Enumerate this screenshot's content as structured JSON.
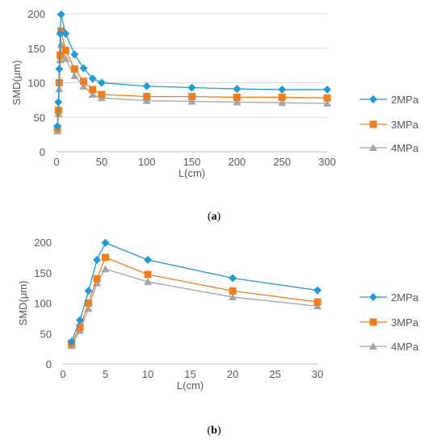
{
  "chart_data": [
    {
      "type": "line",
      "caption": "(a)",
      "caption_letter": "a",
      "xlabel": "L(cm)",
      "ylabel": "SMD(μm)",
      "xlim": [
        0,
        300
      ],
      "ylim": [
        0,
        200
      ],
      "x_ticks": [
        "0",
        "50",
        "100",
        "150",
        "200",
        "250",
        "300"
      ],
      "y_ticks": [
        "0",
        "50",
        "100",
        "150",
        "200"
      ],
      "x_tick_values": [
        0,
        50,
        100,
        150,
        200,
        250,
        300
      ],
      "y_tick_values": [
        0,
        50,
        100,
        150,
        200
      ],
      "grid": "horizontal",
      "legend": "right",
      "series": [
        {
          "name": "2MPa",
          "color": "#1f9bd7",
          "marker": "diamond",
          "x": [
            1,
            2,
            3,
            4,
            5,
            10,
            20,
            30,
            40,
            50,
            100,
            150,
            200,
            250,
            300
          ],
          "y": [
            37,
            72,
            120,
            171,
            199,
            171,
            141,
            121,
            106,
            100,
            95,
            93,
            91,
            90,
            90
          ]
        },
        {
          "name": "3MPa",
          "color": "#f07d1e",
          "marker": "square",
          "x": [
            1,
            2,
            3,
            4,
            5,
            10,
            20,
            30,
            40,
            50,
            100,
            150,
            200,
            250,
            300
          ],
          "y": [
            34,
            60,
            100,
            140,
            175,
            147,
            120,
            102,
            90,
            83,
            80,
            80,
            79,
            79,
            78
          ]
        },
        {
          "name": "4MPa",
          "color": "#a5a5a5",
          "marker": "triangle",
          "x": [
            1,
            2,
            3,
            4,
            5,
            10,
            20,
            30,
            40,
            50,
            100,
            150,
            200,
            250,
            300
          ],
          "y": [
            30,
            55,
            91,
            133,
            156,
            135,
            110,
            95,
            83,
            78,
            74,
            73,
            72,
            71,
            70
          ]
        }
      ]
    },
    {
      "type": "line",
      "caption": "(b)",
      "caption_letter": "b",
      "xlabel": "L(cm)",
      "ylabel": "SMD(μm)",
      "xlim": [
        0,
        30
      ],
      "ylim": [
        0,
        200
      ],
      "x_ticks": [
        "0",
        "5",
        "10",
        "15",
        "20",
        "25",
        "30"
      ],
      "y_ticks": [
        "0",
        "50",
        "100",
        "150",
        "200"
      ],
      "x_tick_values": [
        0,
        5,
        10,
        15,
        20,
        25,
        30
      ],
      "y_tick_values": [
        0,
        50,
        100,
        150,
        200
      ],
      "grid": "none",
      "legend": "right",
      "series": [
        {
          "name": "2MPa",
          "color": "#1f9bd7",
          "marker": "diamond",
          "x": [
            1,
            2,
            3,
            4,
            5,
            10,
            20,
            30
          ],
          "y": [
            37,
            72,
            120,
            171,
            199,
            171,
            141,
            121
          ]
        },
        {
          "name": "3MPa",
          "color": "#f07d1e",
          "marker": "square",
          "x": [
            1,
            2,
            3,
            4,
            5,
            10,
            20,
            30
          ],
          "y": [
            34,
            60,
            100,
            140,
            175,
            147,
            120,
            102
          ]
        },
        {
          "name": "4MPa",
          "color": "#a5a5a5",
          "marker": "triangle",
          "x": [
            1,
            2,
            3,
            4,
            5,
            10,
            20,
            30
          ],
          "y": [
            30,
            55,
            91,
            133,
            156,
            135,
            110,
            95
          ]
        }
      ]
    }
  ]
}
